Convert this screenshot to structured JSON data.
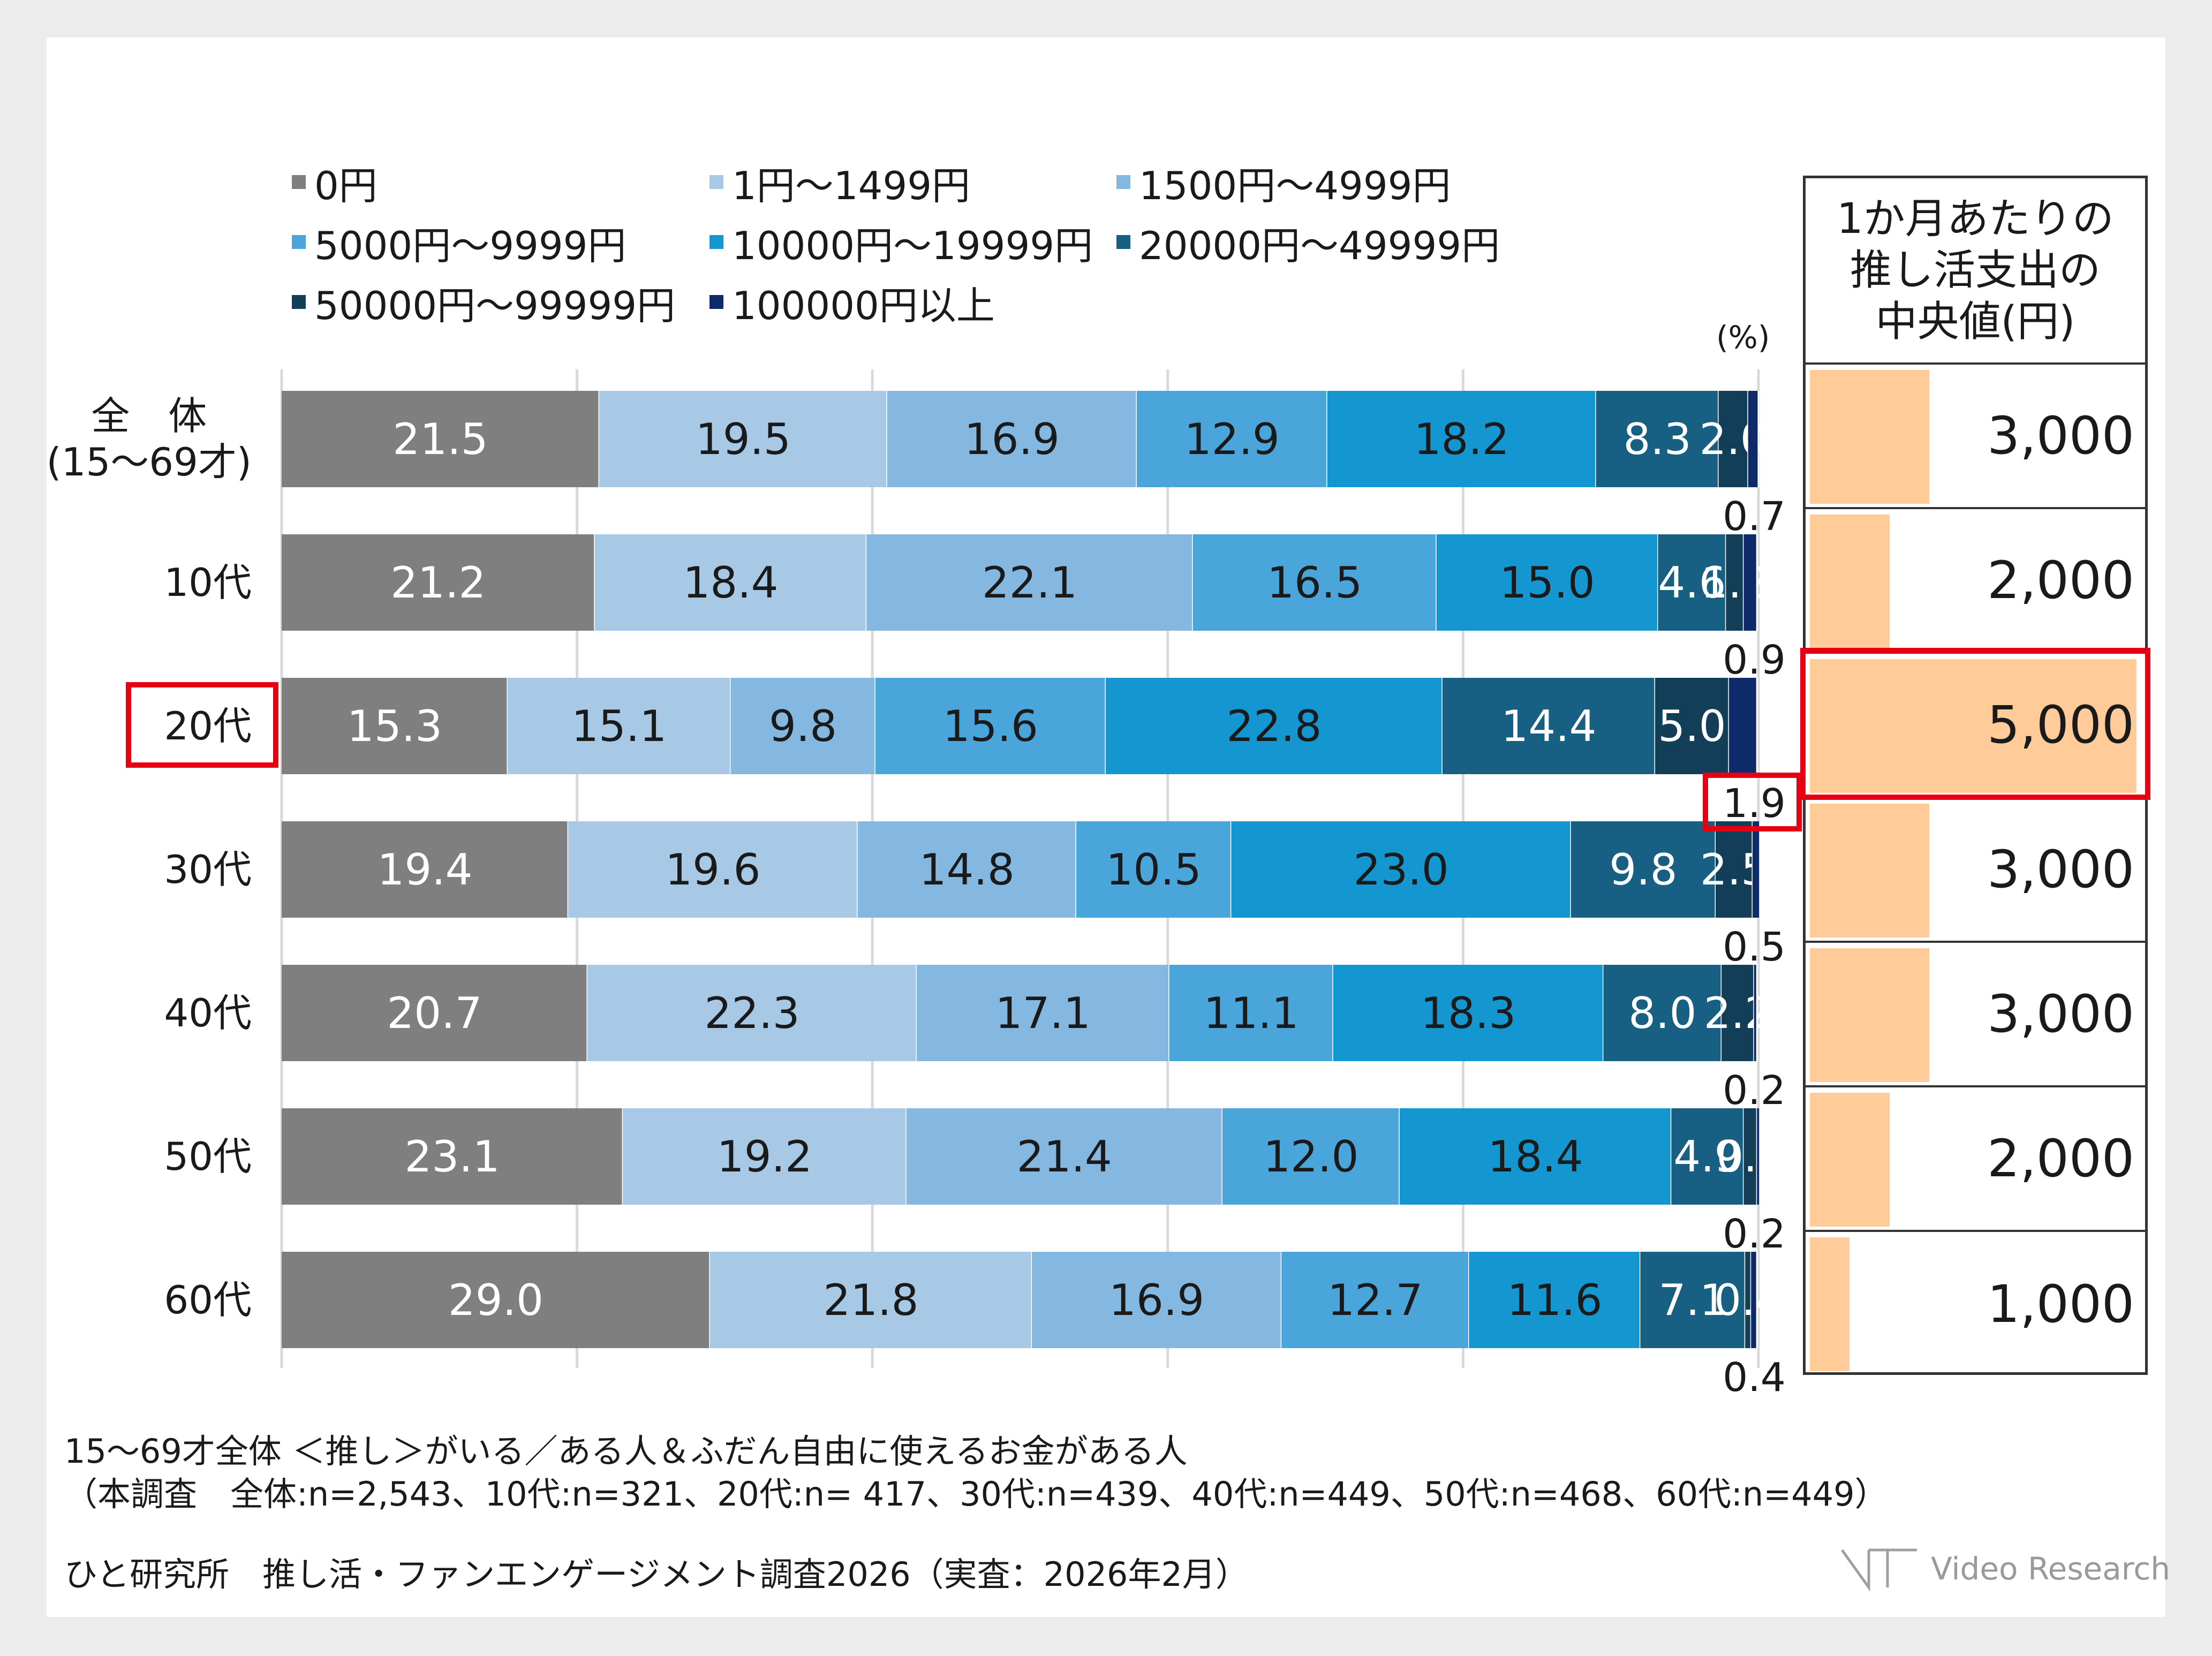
{
  "chart_data": {
    "type": "bar",
    "orientation": "horizontal",
    "stacked": true,
    "unit_label": "(%)",
    "categories": [
      "全　体\n(15～69才)",
      "10代",
      "20代",
      "30代",
      "40代",
      "50代",
      "60代"
    ],
    "series": [
      {
        "name": "0円",
        "color": "#7f7f7f",
        "values": [
          21.5,
          21.2,
          15.3,
          19.4,
          20.7,
          23.1,
          29.0
        ]
      },
      {
        "name": "1円～1499円",
        "color": "#a7c9e6",
        "values": [
          19.5,
          18.4,
          15.1,
          19.6,
          22.3,
          19.2,
          21.8
        ]
      },
      {
        "name": "1500円～4999円",
        "color": "#84b8e0",
        "values": [
          16.9,
          22.1,
          9.8,
          14.8,
          17.1,
          21.4,
          16.9
        ]
      },
      {
        "name": "5000円～9999円",
        "color": "#4aa5da",
        "values": [
          12.9,
          16.5,
          15.6,
          10.5,
          11.1,
          12.0,
          12.7
        ]
      },
      {
        "name": "10000円～19999円",
        "color": "#1496d0",
        "values": [
          18.2,
          15.0,
          22.8,
          23.0,
          18.3,
          18.4,
          11.6
        ]
      },
      {
        "name": "20000円～49999円",
        "color": "#185f84",
        "values": [
          8.3,
          4.6,
          14.4,
          9.8,
          8.0,
          4.9,
          7.1
        ]
      },
      {
        "name": "50000円～99999円",
        "color": "#123f57",
        "values": [
          2.0,
          1.2,
          5.0,
          2.5,
          2.2,
          0.9,
          0.4
        ]
      },
      {
        "name": "100000円以上",
        "color": "#0d2a6b",
        "values": [
          0.7,
          0.9,
          1.9,
          0.5,
          0.2,
          0.2,
          0.4
        ]
      }
    ],
    "grid": true,
    "legend_position": "top",
    "highlight_category": "20代"
  },
  "median_panel": {
    "title": "1か月あたりの\n推し活支出の\n中央値(円)",
    "values": [
      3000,
      2000,
      5000,
      3000,
      3000,
      2000,
      1000
    ],
    "labels": [
      "3,000",
      "2,000",
      "5,000",
      "3,000",
      "3,000",
      "2,000",
      "1,000"
    ],
    "bar_color": "#ffcc99",
    "highlight_index": 2
  },
  "notes": {
    "line1": "15～69才全体 ＜推し＞がいる／ある人＆ふだん自由に使えるお金がある人",
    "line2": "（本調査　全体:n=2,543、10代:n=321、20代:n= 417、30代:n=439、40代:n=449、50代:n=468、60代:n=449）",
    "source": "ひと研究所　推し活・ファンエンゲージメント調査2026（実査：2026年2月）"
  },
  "brand": {
    "name": "Video Research"
  },
  "highlight_color": "#e60012"
}
